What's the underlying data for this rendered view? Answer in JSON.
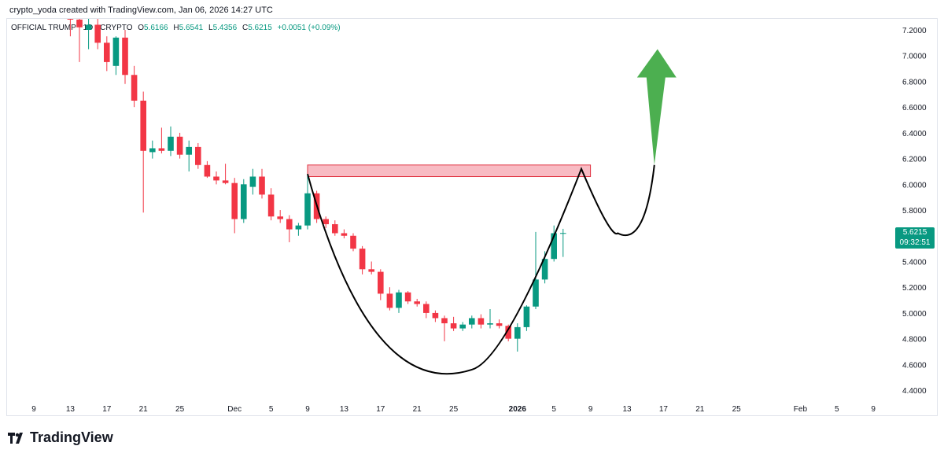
{
  "header": {
    "attribution": "crypto_yoda created with TradingView.com, Jan 06, 2026 14:27 UTC"
  },
  "legend": {
    "symbol": "OFFICIAL TRUMP · 1D · CRYPTO",
    "open_label": "O",
    "open": "5.6166",
    "high_label": "H",
    "high": "5.6541",
    "low_label": "L",
    "low": "5.4356",
    "close_label": "C",
    "close": "5.6215",
    "change": "+0.0051 (+0.09%)"
  },
  "price_tag": {
    "price": "5.6215",
    "countdown": "09:32:51"
  },
  "footer": {
    "brand": "TradingView"
  },
  "colors": {
    "up": "#089981",
    "down": "#f23645",
    "resistance_fill": "#f8bbc3",
    "resistance_border": "#e0313f",
    "arrow": "#4caf50",
    "pattern_line": "#000000"
  },
  "chart_data": {
    "type": "candlestick",
    "title": "",
    "ylim": [
      4.35,
      7.3
    ],
    "y_ticks": [
      "4.4000",
      "4.6000",
      "4.8000",
      "5.0000",
      "5.2000",
      "5.4000",
      "5.6000",
      "5.8000",
      "6.0000",
      "6.2000",
      "6.4000",
      "6.6000",
      "6.8000",
      "7.0000",
      "7.2000"
    ],
    "x_ticks": [
      {
        "date": "2025-11-09",
        "label": "9"
      },
      {
        "date": "2025-11-13",
        "label": "13"
      },
      {
        "date": "2025-11-17",
        "label": "17"
      },
      {
        "date": "2025-11-21",
        "label": "21"
      },
      {
        "date": "2025-11-25",
        "label": "25"
      },
      {
        "date": "2025-12-01",
        "label": "Dec"
      },
      {
        "date": "2025-12-05",
        "label": "5"
      },
      {
        "date": "2025-12-09",
        "label": "9"
      },
      {
        "date": "2025-12-13",
        "label": "13"
      },
      {
        "date": "2025-12-17",
        "label": "17"
      },
      {
        "date": "2025-12-21",
        "label": "21"
      },
      {
        "date": "2025-12-25",
        "label": "25"
      },
      {
        "date": "2026-01-01",
        "label": "2026",
        "bold": true
      },
      {
        "date": "2026-01-05",
        "label": "5"
      },
      {
        "date": "2026-01-09",
        "label": "9"
      },
      {
        "date": "2026-01-13",
        "label": "13"
      },
      {
        "date": "2026-01-17",
        "label": "17"
      },
      {
        "date": "2026-01-21",
        "label": "21"
      },
      {
        "date": "2026-01-25",
        "label": "25"
      },
      {
        "date": "2026-02-01",
        "label": "Feb"
      },
      {
        "date": "2026-02-05",
        "label": "5"
      },
      {
        "date": "2026-02-09",
        "label": "9"
      }
    ],
    "candles": [
      {
        "date": "2025-11-13",
        "o": 7.36,
        "h": 7.42,
        "l": 7.15,
        "c": 7.28
      },
      {
        "date": "2025-11-14",
        "o": 7.28,
        "h": 7.36,
        "l": 6.95,
        "c": 7.22
      },
      {
        "date": "2025-11-15",
        "o": 7.2,
        "h": 7.3,
        "l": 7.05,
        "c": 7.24
      },
      {
        "date": "2025-11-16",
        "o": 7.24,
        "h": 7.3,
        "l": 7.05,
        "c": 7.1
      },
      {
        "date": "2025-11-17",
        "o": 7.1,
        "h": 7.15,
        "l": 6.88,
        "c": 6.95
      },
      {
        "date": "2025-11-18",
        "o": 6.92,
        "h": 7.15,
        "l": 6.85,
        "c": 7.14
      },
      {
        "date": "2025-11-19",
        "o": 7.14,
        "h": 7.2,
        "l": 6.78,
        "c": 6.85
      },
      {
        "date": "2025-11-20",
        "o": 6.85,
        "h": 6.92,
        "l": 6.6,
        "c": 6.65
      },
      {
        "date": "2025-11-21",
        "o": 6.65,
        "h": 6.72,
        "l": 5.78,
        "c": 6.26
      },
      {
        "date": "2025-11-22",
        "o": 6.25,
        "h": 6.34,
        "l": 6.2,
        "c": 6.28
      },
      {
        "date": "2025-11-23",
        "o": 6.28,
        "h": 6.44,
        "l": 6.24,
        "c": 6.26
      },
      {
        "date": "2025-11-24",
        "o": 6.26,
        "h": 6.45,
        "l": 6.22,
        "c": 6.37
      },
      {
        "date": "2025-11-25",
        "o": 6.37,
        "h": 6.4,
        "l": 6.2,
        "c": 6.23
      },
      {
        "date": "2025-11-26",
        "o": 6.23,
        "h": 6.34,
        "l": 6.1,
        "c": 6.29
      },
      {
        "date": "2025-11-27",
        "o": 6.29,
        "h": 6.32,
        "l": 6.12,
        "c": 6.15
      },
      {
        "date": "2025-11-28",
        "o": 6.15,
        "h": 6.18,
        "l": 6.05,
        "c": 6.06
      },
      {
        "date": "2025-11-29",
        "o": 6.06,
        "h": 6.1,
        "l": 6.0,
        "c": 6.03
      },
      {
        "date": "2025-11-30",
        "o": 6.03,
        "h": 6.16,
        "l": 6.0,
        "c": 6.01
      },
      {
        "date": "2025-12-01",
        "o": 6.01,
        "h": 6.05,
        "l": 5.62,
        "c": 5.73
      },
      {
        "date": "2025-12-02",
        "o": 5.73,
        "h": 6.04,
        "l": 5.7,
        "c": 6.0
      },
      {
        "date": "2025-12-03",
        "o": 5.98,
        "h": 6.12,
        "l": 5.92,
        "c": 6.06
      },
      {
        "date": "2025-12-04",
        "o": 6.06,
        "h": 6.12,
        "l": 5.89,
        "c": 5.92
      },
      {
        "date": "2025-12-05",
        "o": 5.92,
        "h": 5.97,
        "l": 5.72,
        "c": 5.75
      },
      {
        "date": "2025-12-06",
        "o": 5.75,
        "h": 5.8,
        "l": 5.7,
        "c": 5.73
      },
      {
        "date": "2025-12-07",
        "o": 5.73,
        "h": 5.76,
        "l": 5.55,
        "c": 5.65
      },
      {
        "date": "2025-12-08",
        "o": 5.65,
        "h": 5.7,
        "l": 5.6,
        "c": 5.68
      },
      {
        "date": "2025-12-09",
        "o": 5.68,
        "h": 6.08,
        "l": 5.65,
        "c": 5.93
      },
      {
        "date": "2025-12-10",
        "o": 5.93,
        "h": 5.95,
        "l": 5.7,
        "c": 5.73
      },
      {
        "date": "2025-12-11",
        "o": 5.73,
        "h": 5.75,
        "l": 5.66,
        "c": 5.69
      },
      {
        "date": "2025-12-12",
        "o": 5.69,
        "h": 5.72,
        "l": 5.6,
        "c": 5.62
      },
      {
        "date": "2025-12-13",
        "o": 5.62,
        "h": 5.65,
        "l": 5.58,
        "c": 5.6
      },
      {
        "date": "2025-12-14",
        "o": 5.6,
        "h": 5.62,
        "l": 5.48,
        "c": 5.5
      },
      {
        "date": "2025-12-15",
        "o": 5.5,
        "h": 5.52,
        "l": 5.3,
        "c": 5.34
      },
      {
        "date": "2025-12-16",
        "o": 5.34,
        "h": 5.4,
        "l": 5.3,
        "c": 5.32
      },
      {
        "date": "2025-12-17",
        "o": 5.32,
        "h": 5.34,
        "l": 5.1,
        "c": 5.15
      },
      {
        "date": "2025-12-18",
        "o": 5.15,
        "h": 5.2,
        "l": 5.02,
        "c": 5.04
      },
      {
        "date": "2025-12-19",
        "o": 5.04,
        "h": 5.18,
        "l": 5.0,
        "c": 5.16
      },
      {
        "date": "2025-12-20",
        "o": 5.16,
        "h": 5.17,
        "l": 5.07,
        "c": 5.09
      },
      {
        "date": "2025-12-21",
        "o": 5.09,
        "h": 5.11,
        "l": 5.05,
        "c": 5.07
      },
      {
        "date": "2025-12-22",
        "o": 5.07,
        "h": 5.09,
        "l": 4.96,
        "c": 5.0
      },
      {
        "date": "2025-12-23",
        "o": 5.0,
        "h": 5.02,
        "l": 4.93,
        "c": 4.96
      },
      {
        "date": "2025-12-24",
        "o": 4.96,
        "h": 4.98,
        "l": 4.78,
        "c": 4.92
      },
      {
        "date": "2025-12-25",
        "o": 4.92,
        "h": 4.97,
        "l": 4.86,
        "c": 4.88
      },
      {
        "date": "2025-12-26",
        "o": 4.88,
        "h": 4.93,
        "l": 4.86,
        "c": 4.91
      },
      {
        "date": "2025-12-27",
        "o": 4.91,
        "h": 4.98,
        "l": 4.88,
        "c": 4.96
      },
      {
        "date": "2025-12-28",
        "o": 4.96,
        "h": 4.99,
        "l": 4.88,
        "c": 4.91
      },
      {
        "date": "2025-12-29",
        "o": 4.91,
        "h": 5.03,
        "l": 4.88,
        "c": 4.92
      },
      {
        "date": "2025-12-30",
        "o": 4.92,
        "h": 4.95,
        "l": 4.88,
        "c": 4.9
      },
      {
        "date": "2025-12-31",
        "o": 4.9,
        "h": 4.91,
        "l": 4.78,
        "c": 4.8
      },
      {
        "date": "2026-01-01",
        "o": 4.8,
        "h": 4.92,
        "l": 4.7,
        "c": 4.89
      },
      {
        "date": "2026-01-02",
        "o": 4.89,
        "h": 5.06,
        "l": 4.86,
        "c": 5.05
      },
      {
        "date": "2026-01-03",
        "o": 5.05,
        "h": 5.63,
        "l": 5.03,
        "c": 5.26
      },
      {
        "date": "2026-01-04",
        "o": 5.26,
        "h": 5.48,
        "l": 5.23,
        "c": 5.42
      },
      {
        "date": "2026-01-05",
        "o": 5.42,
        "h": 5.68,
        "l": 5.4,
        "c": 5.62
      },
      {
        "date": "2026-01-06",
        "o": 5.6166,
        "h": 5.6541,
        "l": 5.4356,
        "c": 5.6215
      }
    ],
    "resistance_zone": {
      "from_date": "2025-12-09",
      "to_date": "2026-01-09",
      "low": 6.06,
      "high": 6.15
    },
    "cup_handle_path": [
      {
        "date": "2025-12-09",
        "y": 6.08
      },
      {
        "date": "2025-12-27",
        "y": 4.56
      },
      {
        "date": "2026-01-08",
        "y": 6.12
      },
      {
        "date": "2026-01-12",
        "y": 5.62
      },
      {
        "date": "2026-01-16",
        "y": 6.15
      }
    ],
    "arrow": {
      "date": "2026-01-16",
      "from_y": 6.15,
      "to_y": 7.05
    }
  }
}
